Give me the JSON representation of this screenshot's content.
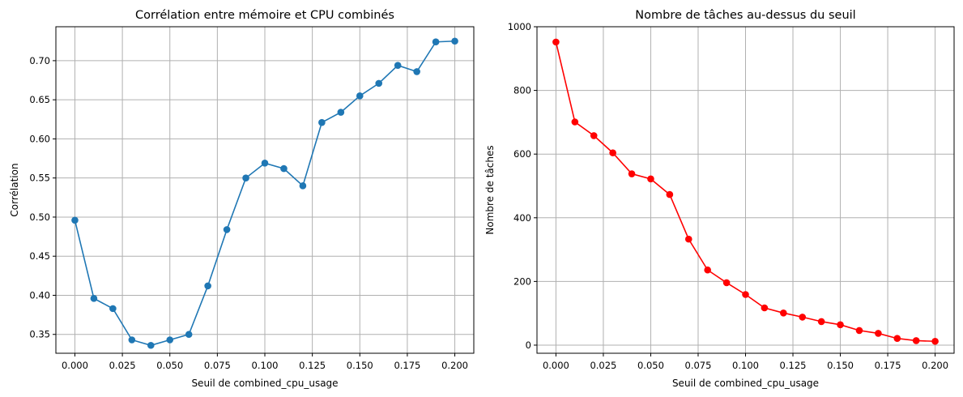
{
  "chart_data": [
    {
      "type": "line",
      "title": "Corrélation entre mémoire et CPU combinés",
      "xlabel": "Seuil de combined_cpu_usage",
      "ylabel": "Corrélation",
      "color": "#1f77b4",
      "marker": "circle",
      "grid": true,
      "xlim": [
        -0.01,
        0.21
      ],
      "ylim": [
        0.3259,
        0.7434
      ],
      "xticks": [
        0.0,
        0.025,
        0.05,
        0.075,
        0.1,
        0.125,
        0.15,
        0.175,
        0.2
      ],
      "xtick_labels": [
        "0.000",
        "0.025",
        "0.050",
        "0.075",
        "0.100",
        "0.125",
        "0.150",
        "0.175",
        "0.200"
      ],
      "yticks": [
        0.35,
        0.4,
        0.45,
        0.5,
        0.55,
        0.6,
        0.65,
        0.7
      ],
      "ytick_labels": [
        "0.35",
        "0.40",
        "0.45",
        "0.50",
        "0.55",
        "0.60",
        "0.65",
        "0.70"
      ],
      "x": [
        0.0,
        0.01,
        0.02,
        0.03,
        0.04,
        0.05,
        0.06,
        0.07,
        0.08,
        0.09,
        0.1,
        0.11,
        0.12,
        0.13,
        0.14,
        0.15,
        0.16,
        0.17,
        0.18,
        0.19,
        0.2
      ],
      "y": [
        0.496,
        0.396,
        0.383,
        0.343,
        0.336,
        0.343,
        0.35,
        0.412,
        0.484,
        0.55,
        0.569,
        0.562,
        0.54,
        0.621,
        0.634,
        0.655,
        0.671,
        0.694,
        0.686,
        0.724,
        0.725
      ]
    },
    {
      "type": "line",
      "title": "Nombre de tâches au-dessus du seuil",
      "xlabel": "Seuil de combined_cpu_usage",
      "ylabel": "Nombre de tâches",
      "color": "#ff0000",
      "marker": "circle",
      "grid": true,
      "xlim": [
        -0.01,
        0.21
      ],
      "ylim": [
        -25.5,
        1000
      ],
      "xticks": [
        0.0,
        0.025,
        0.05,
        0.075,
        0.1,
        0.125,
        0.15,
        0.175,
        0.2
      ],
      "xtick_labels": [
        "0.000",
        "0.025",
        "0.050",
        "0.075",
        "0.100",
        "0.125",
        "0.150",
        "0.175",
        "0.200"
      ],
      "yticks": [
        0,
        200,
        400,
        600,
        800,
        1000
      ],
      "ytick_labels": [
        "0",
        "200",
        "400",
        "600",
        "800",
        "1000"
      ],
      "x": [
        0.0,
        0.01,
        0.02,
        0.03,
        0.04,
        0.05,
        0.06,
        0.07,
        0.08,
        0.09,
        0.1,
        0.11,
        0.12,
        0.13,
        0.14,
        0.15,
        0.16,
        0.17,
        0.18,
        0.19,
        0.2
      ],
      "y": [
        952,
        701,
        658,
        604,
        538,
        522,
        473,
        333,
        236,
        196,
        159,
        117,
        101,
        88,
        74,
        64,
        46,
        37,
        21,
        14,
        12
      ]
    }
  ]
}
